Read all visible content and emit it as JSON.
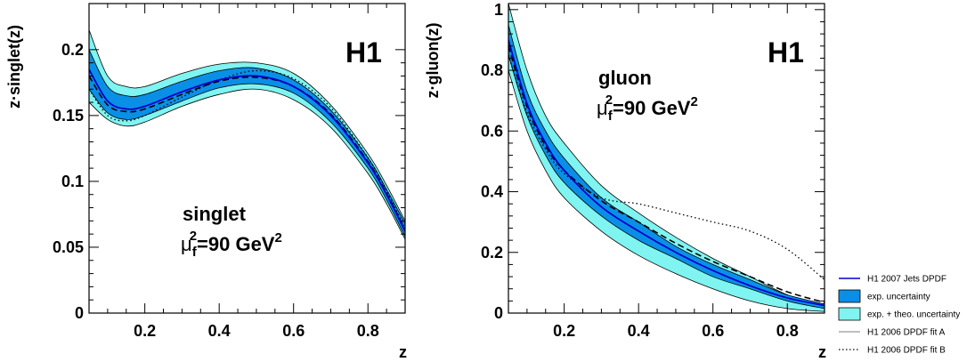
{
  "chart_data": [
    {
      "type": "line",
      "title": "",
      "xlabel": "z",
      "ylabel": "z·singlet(z)",
      "xlim": [
        0.05,
        0.9
      ],
      "ylim": [
        0,
        0.235
      ],
      "x_ticks": [
        "0.2",
        "0.4",
        "0.6",
        "0.8"
      ],
      "y_ticks": [
        "0",
        "0.05",
        "0.1",
        "0.15",
        "0.2"
      ],
      "logo": "H1",
      "annotation": {
        "name": "singlet",
        "mu": "μ",
        "sub": "f",
        "sup1": "2",
        "eq": "=90 GeV",
        "sup2": "2"
      },
      "x": [
        0.05,
        0.1,
        0.15,
        0.2,
        0.3,
        0.4,
        0.5,
        0.6,
        0.7,
        0.8,
        0.85,
        0.9
      ],
      "series": [
        {
          "name": "H1 2007 Jets DPDF",
          "values": [
            0.185,
            0.161,
            0.155,
            0.157,
            0.168,
            0.177,
            0.18,
            0.172,
            0.15,
            0.114,
            0.09,
            0.062
          ]
        },
        {
          "name": "exp. + theo. uncertainty upper",
          "values": [
            0.215,
            0.18,
            0.172,
            0.172,
            0.182,
            0.189,
            0.19,
            0.182,
            0.158,
            0.121,
            0.097,
            0.07
          ]
        },
        {
          "name": "exp. + theo. uncertainty lower",
          "values": [
            0.16,
            0.147,
            0.142,
            0.145,
            0.157,
            0.166,
            0.17,
            0.162,
            0.141,
            0.106,
            0.083,
            0.056
          ]
        },
        {
          "name": "exp. uncertainty upper",
          "values": [
            0.2,
            0.172,
            0.165,
            0.166,
            0.176,
            0.184,
            0.186,
            0.177,
            0.154,
            0.118,
            0.094,
            0.068
          ]
        },
        {
          "name": "exp. uncertainty lower",
          "values": [
            0.17,
            0.152,
            0.147,
            0.15,
            0.161,
            0.171,
            0.174,
            0.167,
            0.145,
            0.11,
            0.086,
            0.058
          ]
        },
        {
          "name": "H1 2006 DPDF fit A",
          "values": [
            0.18,
            0.158,
            0.153,
            0.155,
            0.166,
            0.176,
            0.179,
            0.172,
            0.151,
            0.115,
            0.091,
            0.063
          ]
        },
        {
          "name": "H1 2006 DPDF fit B",
          "values": [
            0.17,
            0.15,
            0.146,
            0.15,
            0.164,
            0.177,
            0.184,
            0.178,
            0.156,
            0.118,
            0.093,
            0.064
          ]
        }
      ]
    },
    {
      "type": "line",
      "title": "",
      "xlabel": "z",
      "ylabel": "z·gluon(z)",
      "xlim": [
        0.05,
        0.9
      ],
      "ylim": [
        0,
        1.02
      ],
      "x_ticks": [
        "0.2",
        "0.4",
        "0.6",
        "0.8"
      ],
      "y_ticks": [
        "0",
        "0.2",
        "0.4",
        "0.6",
        "0.8",
        "1"
      ],
      "logo": "H1",
      "annotation": {
        "name": "gluon",
        "mu": "μ",
        "sub": "f",
        "sup1": "2",
        "eq": "=90 GeV",
        "sup2": "2"
      },
      "x": [
        0.05,
        0.1,
        0.15,
        0.2,
        0.3,
        0.4,
        0.5,
        0.6,
        0.7,
        0.8,
        0.9
      ],
      "series": [
        {
          "name": "H1 2007 Jets DPDF",
          "values": [
            0.9,
            0.69,
            0.56,
            0.47,
            0.35,
            0.27,
            0.2,
            0.14,
            0.09,
            0.05,
            0.025
          ]
        },
        {
          "name": "exp. + theo. uncertainty upper",
          "values": [
            1.02,
            0.8,
            0.65,
            0.56,
            0.42,
            0.33,
            0.25,
            0.18,
            0.12,
            0.06,
            0.02
          ]
        },
        {
          "name": "exp. + theo. uncertainty lower",
          "values": [
            0.8,
            0.6,
            0.47,
            0.38,
            0.27,
            0.19,
            0.13,
            0.08,
            0.04,
            0.015,
            0.005
          ]
        },
        {
          "name": "exp. uncertainty upper",
          "values": [
            0.95,
            0.73,
            0.6,
            0.51,
            0.38,
            0.3,
            0.22,
            0.16,
            0.11,
            0.06,
            0.03
          ]
        },
        {
          "name": "exp. uncertainty lower",
          "values": [
            0.85,
            0.65,
            0.52,
            0.43,
            0.32,
            0.24,
            0.18,
            0.12,
            0.08,
            0.04,
            0.015
          ]
        },
        {
          "name": "H1 2006 DPDF fit A",
          "values": [
            0.88,
            0.68,
            0.55,
            0.47,
            0.37,
            0.3,
            0.23,
            0.17,
            0.12,
            0.07,
            0.035
          ]
        },
        {
          "name": "H1 2006 DPDF fit B",
          "values": [
            0.85,
            0.66,
            0.54,
            0.46,
            0.38,
            0.36,
            0.33,
            0.3,
            0.27,
            0.21,
            0.11
          ]
        }
      ]
    }
  ],
  "legend": {
    "placement": "bottom-right",
    "items": [
      {
        "label": "H1 2007 Jets DPDF",
        "style": "line",
        "color": "#0000cc"
      },
      {
        "label": "exp. uncertainty",
        "style": "box",
        "color": "#0a8fe6"
      },
      {
        "label": "exp. + theo. uncertainty",
        "style": "box",
        "color": "#7ff4f0"
      },
      {
        "label": "H1 2006 DPDF fit A",
        "style": "thinline",
        "color": "#555555"
      },
      {
        "label": "H1 2006 DPDF fit B",
        "style": "dotted",
        "color": "#000000"
      }
    ]
  },
  "colors": {
    "central": "#0000cc",
    "exp_band": "#0a8fe6",
    "theo_band": "#7ff4f0",
    "fitA": "#000000",
    "fitB": "#000000"
  }
}
